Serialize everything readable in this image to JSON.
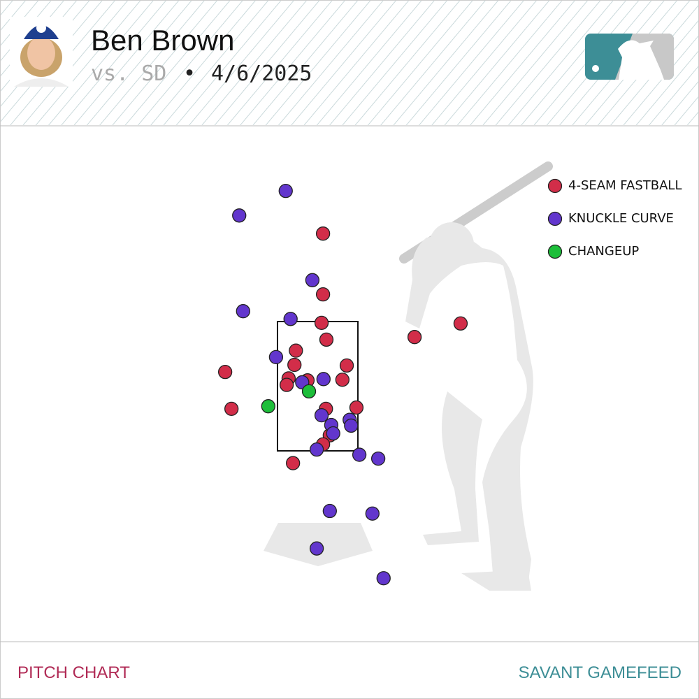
{
  "header": {
    "pitcher": "Ben Brown",
    "opponent": "vs. SD",
    "separator": "•",
    "date": "4/6/2025"
  },
  "footer": {
    "left": "PITCH CHART",
    "right": "SAVANT GAMEFEED"
  },
  "chart_data": {
    "type": "scatter",
    "xlim": [
      -3,
      3
    ],
    "ylim": [
      -1,
      6
    ],
    "strike_zone": {
      "left": -0.83,
      "right": 0.83,
      "bottom": 1.5,
      "top": 3.5
    },
    "series": [
      {
        "name": "4-SEAM FASTBALL",
        "color": "#d22d49",
        "x": [
          0.11,
          0.11,
          0.08,
          0.18,
          -0.45,
          -0.48,
          0.6,
          -1.91,
          -0.6,
          -0.64,
          -0.21,
          0.51,
          -1.78,
          0.17,
          0.8,
          0.25,
          0.11,
          -0.51,
          2.0,
          2.95
        ],
        "y": [
          4.86,
          3.92,
          3.48,
          3.22,
          3.05,
          2.83,
          2.82,
          2.72,
          2.62,
          2.52,
          2.59,
          2.6,
          2.15,
          2.15,
          2.17,
          1.74,
          1.6,
          1.31,
          3.26,
          3.47
        ]
      },
      {
        "name": "KNUCKLE CURVE",
        "color": "#6236cd",
        "x": [
          -0.66,
          -1.62,
          -0.11,
          -1.54,
          -0.56,
          -0.86,
          -0.32,
          0.12,
          0.08,
          0.28,
          0.66,
          0.69,
          0.32,
          -0.02,
          0.86,
          1.25,
          0.25,
          1.13,
          -0.02,
          1.36
        ],
        "y": [
          5.52,
          5.14,
          4.14,
          3.66,
          3.54,
          2.95,
          2.56,
          2.61,
          2.05,
          1.9,
          1.98,
          1.89,
          1.77,
          1.52,
          1.44,
          1.38,
          0.57,
          0.53,
          -0.01,
          -0.47
        ]
      },
      {
        "name": "CHANGEUP",
        "color": "#1dbe3a",
        "x": [
          -1.02,
          -0.18
        ],
        "y": [
          2.19,
          2.42
        ]
      }
    ]
  }
}
